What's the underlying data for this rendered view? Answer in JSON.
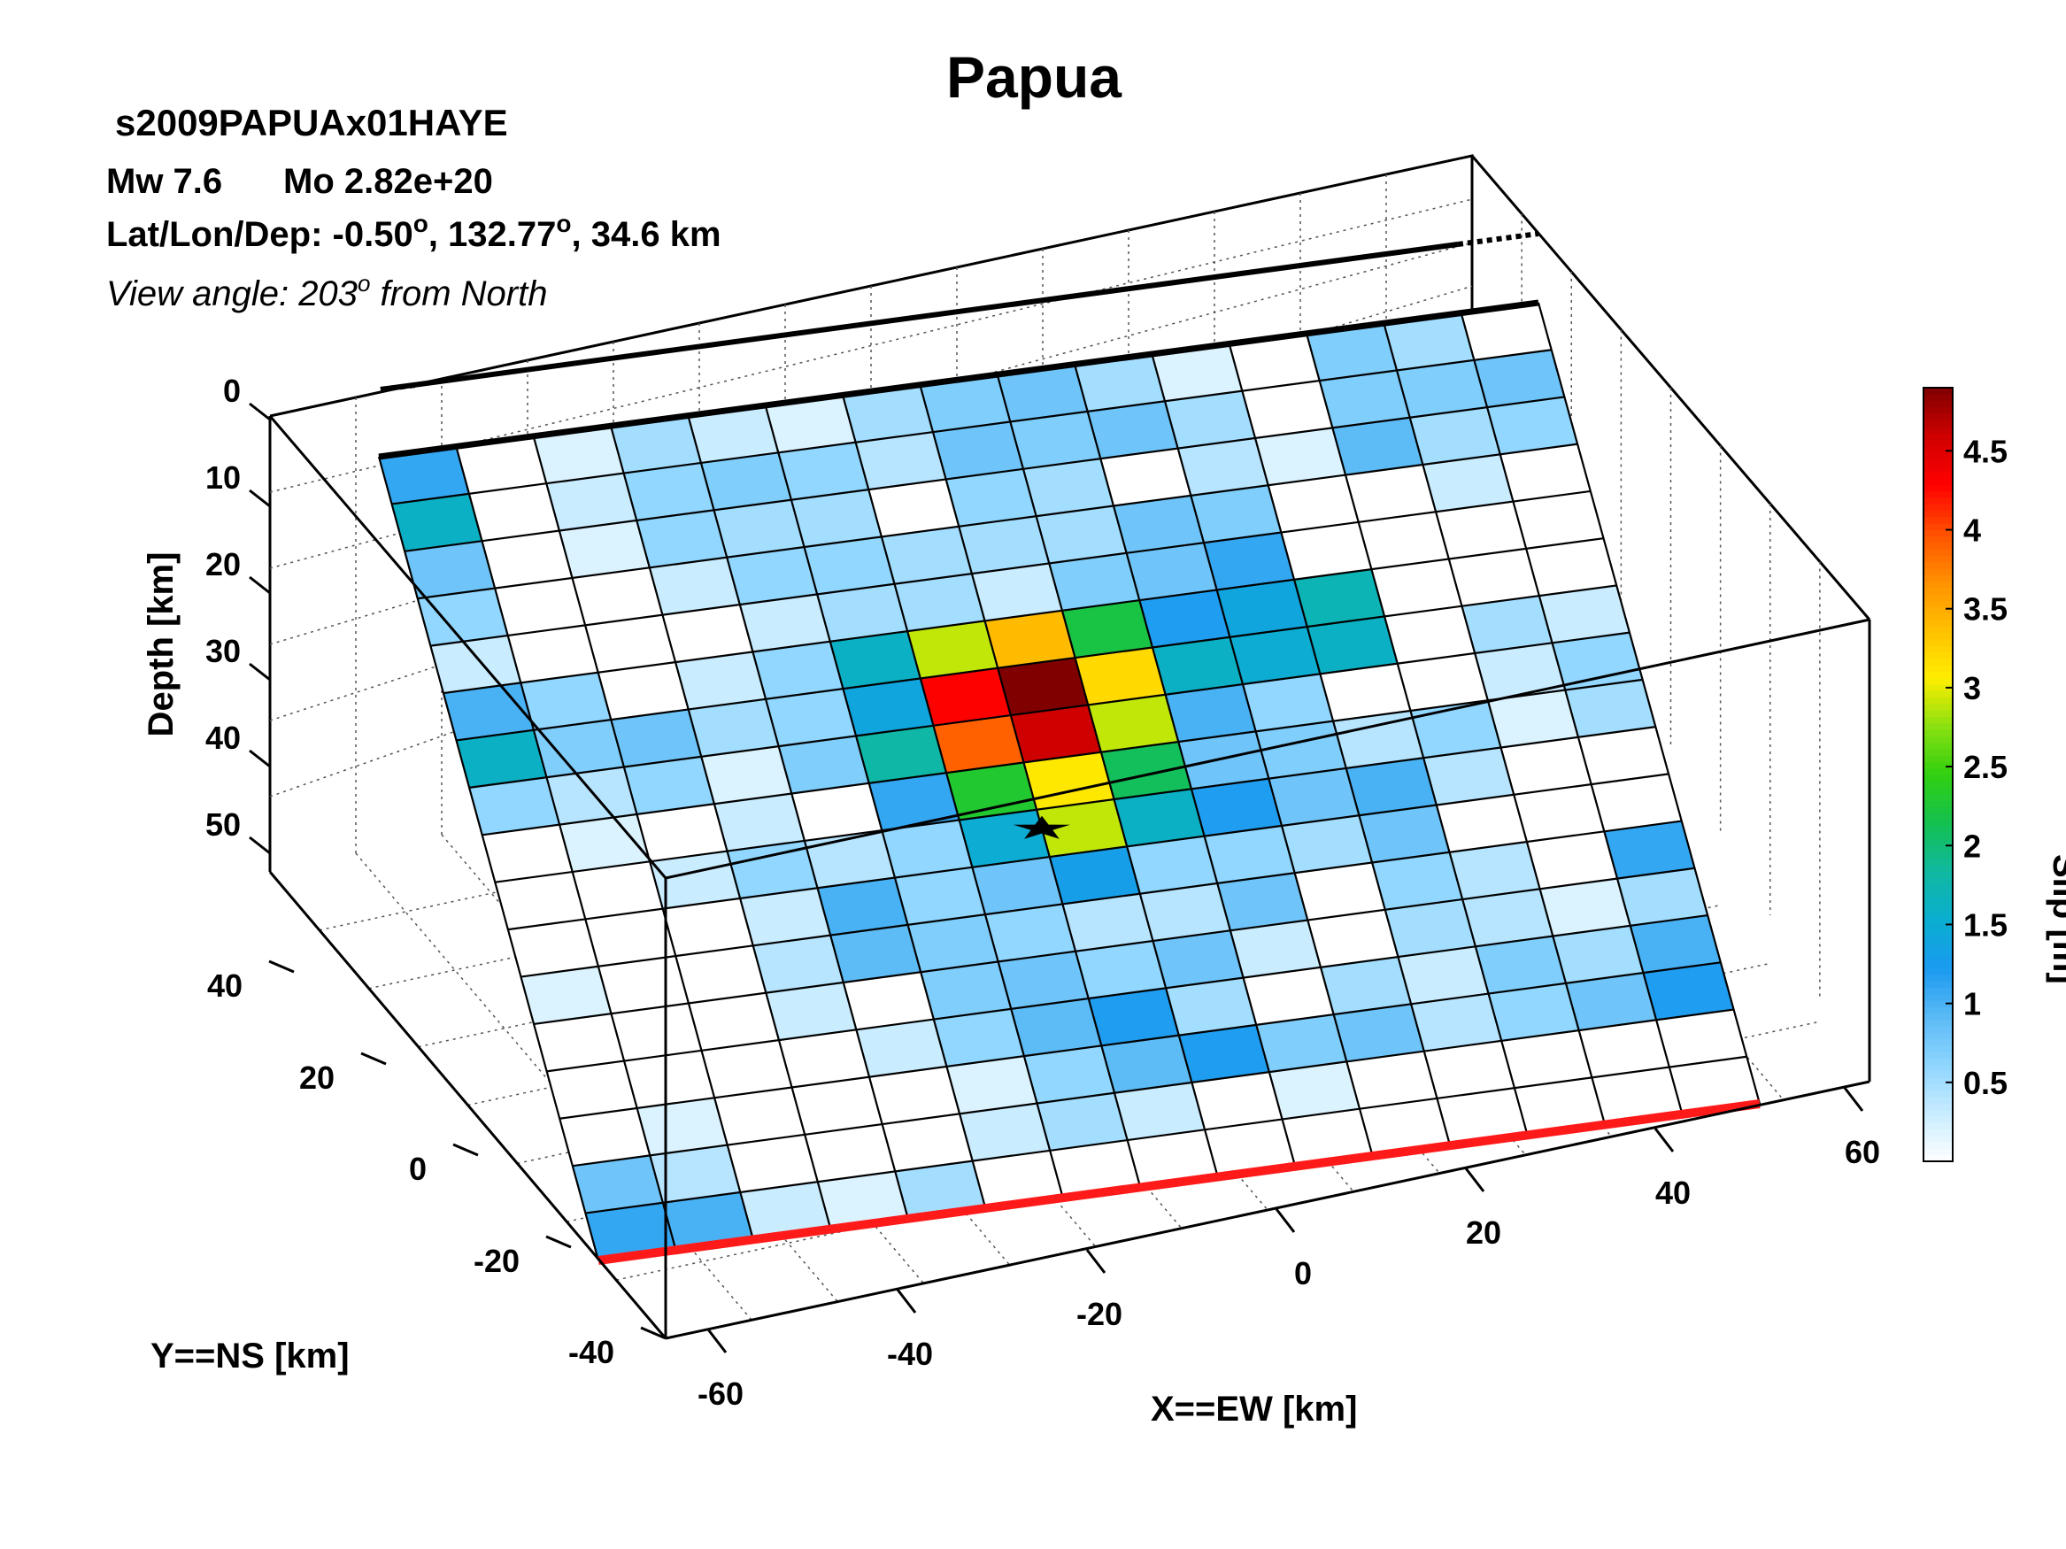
{
  "chart_data": {
    "type": "heatmap",
    "title": "Papua",
    "event_id": "s2009PAPUAx01HAYE",
    "magnitude_text": "Mw 7.6",
    "moment_text": "Mo 2.82e+20",
    "location_prefix": "Lat/Lon/Dep: -0.50",
    "location_lon": ", 132.77",
    "location_dep": ", 34.6 km",
    "degree_symbol": "o",
    "view_prefix": "View angle: 203",
    "view_suffix": " from North",
    "xlabel": "X==EW [km]",
    "ylabel": "Y==NS [km]",
    "zlabel": "Depth [km]",
    "colorbar_label": "Slip [m]",
    "x_ticks": [
      "-60",
      "-40",
      "-20",
      "0",
      "20",
      "40",
      "60"
    ],
    "y_ticks": [
      "-40",
      "-20",
      "0",
      "20",
      "40"
    ],
    "z_ticks": [
      "0",
      "10",
      "20",
      "30",
      "40",
      "50"
    ],
    "colorbar_ticks": [
      "0.5",
      "1",
      "1.5",
      "2",
      "2.5",
      "3",
      "3.5",
      "4",
      "4.5"
    ],
    "colorbar_range": [
      0,
      4.9
    ],
    "grid": true,
    "n_strike": 15,
    "n_dip": 17,
    "slip_rows_top_to_bottom": [
      [
        1.1,
        0.0,
        0.2,
        0.5,
        0.3,
        0.2,
        0.5,
        0.7,
        0.8,
        0.5,
        0.2,
        0.0,
        0.7,
        0.5,
        0.0
      ],
      [
        1.6,
        0.0,
        0.3,
        0.6,
        0.7,
        0.6,
        0.4,
        0.8,
        0.7,
        0.8,
        0.5,
        0.0,
        0.7,
        0.7,
        0.8
      ],
      [
        0.8,
        0.0,
        0.2,
        0.6,
        0.5,
        0.5,
        0.0,
        0.6,
        0.5,
        0.0,
        0.4,
        0.2,
        0.9,
        0.5,
        0.6
      ],
      [
        0.6,
        0.0,
        0.0,
        0.3,
        0.6,
        0.6,
        0.5,
        0.5,
        0.5,
        0.8,
        0.7,
        0.0,
        0.0,
        0.3,
        0.0
      ],
      [
        0.3,
        0.0,
        0.0,
        0.0,
        0.3,
        0.5,
        0.5,
        0.3,
        0.7,
        0.8,
        1.1,
        0.0,
        0.0,
        0.0,
        0.0
      ],
      [
        1.0,
        0.6,
        0.0,
        0.3,
        0.6,
        1.6,
        2.9,
        3.4,
        2.2,
        1.2,
        1.4,
        1.7,
        0.0,
        0.0,
        0.0
      ],
      [
        1.6,
        0.7,
        0.8,
        0.5,
        0.6,
        1.4,
        4.3,
        4.9,
        3.2,
        1.6,
        1.5,
        1.6,
        0.0,
        0.5,
        0.3
      ],
      [
        0.6,
        0.4,
        0.6,
        0.2,
        0.7,
        1.8,
        3.9,
        4.6,
        2.9,
        1.0,
        0.6,
        0.0,
        0.0,
        0.3,
        0.6
      ],
      [
        0.0,
        0.2,
        0.0,
        0.3,
        0.0,
        1.1,
        2.3,
        3.1,
        2.1,
        0.8,
        0.7,
        0.4,
        0.6,
        0.2,
        0.5
      ],
      [
        0.0,
        0.0,
        0.3,
        0.6,
        0.4,
        0.6,
        1.5,
        2.9,
        1.6,
        1.2,
        0.8,
        1.0,
        0.4,
        0.0,
        0.0
      ],
      [
        0.0,
        0.0,
        0.0,
        0.3,
        1.0,
        0.6,
        0.8,
        1.3,
        0.6,
        0.6,
        0.5,
        0.8,
        0.0,
        0.0,
        0.0
      ],
      [
        0.2,
        0.0,
        0.0,
        0.4,
        0.9,
        0.7,
        0.6,
        0.4,
        0.4,
        0.8,
        0.0,
        0.6,
        0.4,
        0.0,
        1.1
      ],
      [
        0.0,
        0.0,
        0.0,
        0.3,
        0.0,
        0.7,
        0.8,
        0.6,
        0.8,
        0.3,
        0.0,
        0.5,
        0.4,
        0.2,
        0.5
      ],
      [
        0.0,
        0.0,
        0.0,
        0.0,
        0.3,
        0.6,
        0.9,
        1.2,
        0.5,
        0.0,
        0.5,
        0.3,
        0.7,
        0.5,
        1.0
      ],
      [
        0.0,
        0.2,
        0.0,
        0.0,
        0.0,
        0.2,
        0.6,
        0.9,
        1.2,
        0.7,
        0.8,
        0.4,
        0.6,
        0.8,
        1.2
      ],
      [
        0.8,
        0.4,
        0.0,
        0.0,
        0.0,
        0.3,
        0.5,
        0.3,
        0.0,
        0.2,
        0.0,
        0.0,
        0.0,
        0.0,
        0.0
      ],
      [
        1.1,
        1.0,
        0.3,
        0.2,
        0.5,
        0.0,
        0.0,
        0.0,
        0.0,
        0.0,
        0.0,
        0.0,
        0.0,
        0.0,
        0.0
      ]
    ],
    "hypocenter": {
      "strike_index": 7,
      "dip_index": 9.4
    },
    "colors": {
      "trench_line": "#ff1a1a",
      "top_edge": "#000000",
      "colormap": [
        "#ffffff",
        "#c8ecff",
        "#8fd6ff",
        "#5abaf5",
        "#1a9af0",
        "#0aaed0",
        "#10b8a0",
        "#14c050",
        "#30d010",
        "#8ae010",
        "#ffee00",
        "#ffc000",
        "#ff9000",
        "#ff5000",
        "#ff0000",
        "#d00000",
        "#800000"
      ]
    }
  }
}
